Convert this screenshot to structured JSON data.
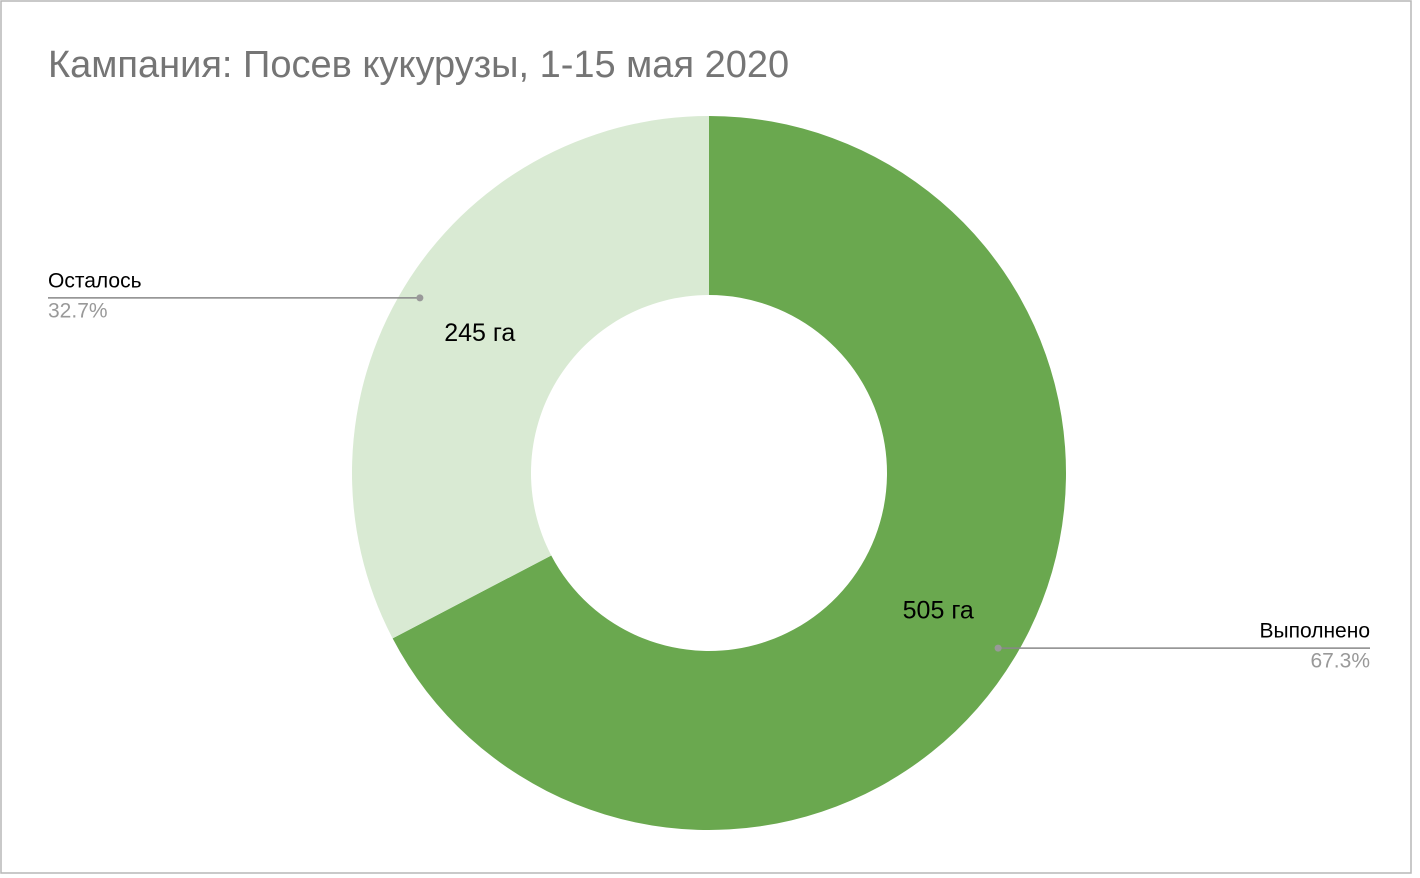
{
  "chart_data": {
    "type": "donut",
    "title": "Кампания: Посев кукурузы, 1-15 мая 2020",
    "categories": [
      "Выполнено",
      "Осталось"
    ],
    "values": [
      505,
      245
    ],
    "value_labels": [
      "505 га",
      "245 га"
    ],
    "percents": [
      67.3,
      32.7
    ],
    "percent_labels": [
      "67.3%",
      "32.7%"
    ],
    "colors": [
      "#6aa84f",
      "#d9ead3"
    ]
  }
}
